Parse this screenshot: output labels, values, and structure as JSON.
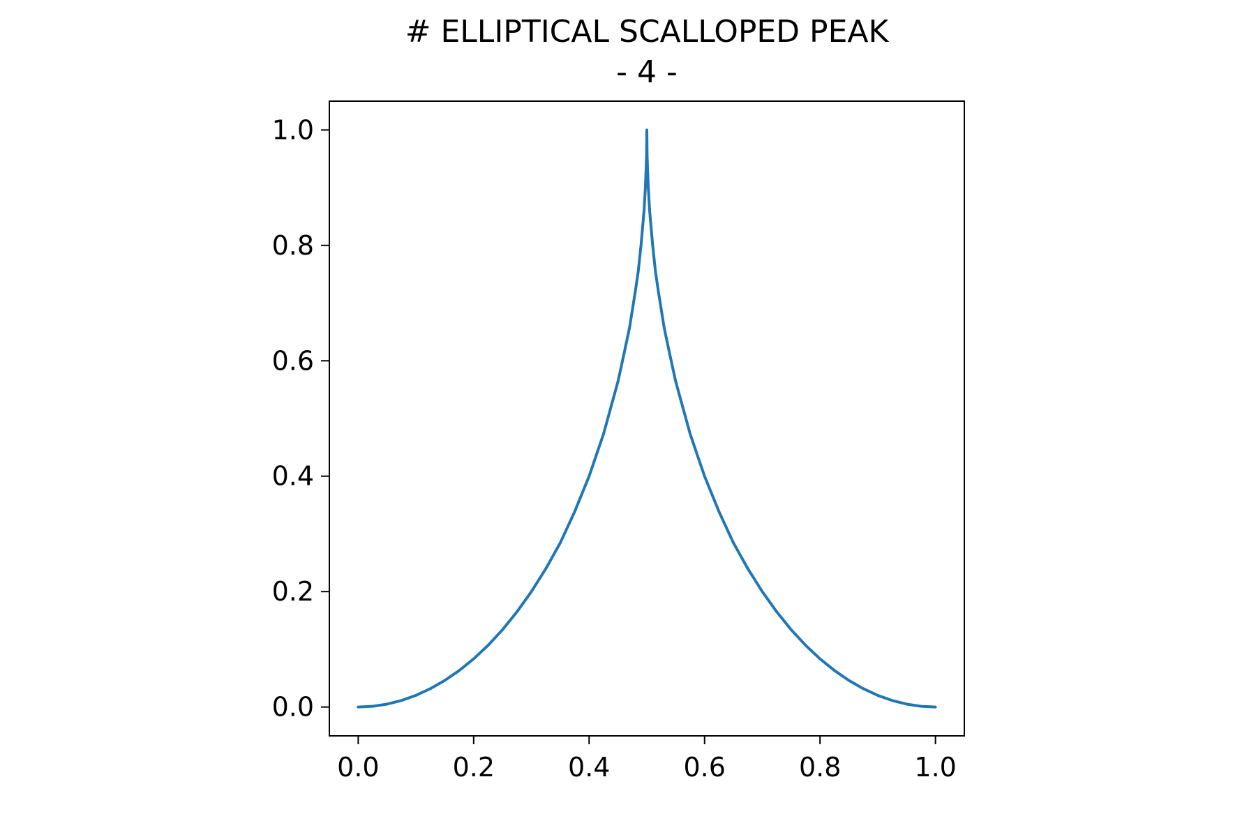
{
  "chart_data": {
    "type": "line",
    "title": "# ELLIPTICAL SCALLOPED PEAK",
    "subtitle": "- 4 -",
    "xlabel": "",
    "ylabel": "",
    "xlim": [
      -0.05,
      1.05
    ],
    "ylim": [
      -0.05,
      1.05
    ],
    "x_ticks": [
      "0.0",
      "0.2",
      "0.4",
      "0.6",
      "0.8",
      "1.0"
    ],
    "y_ticks": [
      "0.0",
      "0.2",
      "0.4",
      "0.6",
      "0.8",
      "1.0"
    ],
    "grid": false,
    "legend": "none",
    "series": [
      {
        "color": "#1f77b4",
        "x": [
          0.0,
          0.025,
          0.05,
          0.075,
          0.1,
          0.125,
          0.15,
          0.175,
          0.2,
          0.225,
          0.25,
          0.275,
          0.3,
          0.325,
          0.35,
          0.375,
          0.4,
          0.425,
          0.45,
          0.46,
          0.47,
          0.48,
          0.485,
          0.49,
          0.495,
          0.4975,
          0.4995,
          0.5,
          0.5005,
          0.5025,
          0.505,
          0.51,
          0.515,
          0.52,
          0.53,
          0.54,
          0.55,
          0.575,
          0.6,
          0.625,
          0.65,
          0.675,
          0.7,
          0.725,
          0.75,
          0.775,
          0.8,
          0.825,
          0.85,
          0.875,
          0.9,
          0.925,
          0.95,
          0.975,
          1.0
        ],
        "y": [
          0.0,
          0.00125,
          0.00501,
          0.01131,
          0.0202,
          0.03175,
          0.04606,
          0.06328,
          0.08348,
          0.10692,
          0.13397,
          0.16495,
          0.2,
          0.23969,
          0.28446,
          0.33856,
          0.4,
          0.47323,
          0.56411,
          0.61007,
          0.65732,
          0.72,
          0.75403,
          0.80101,
          0.85834,
          0.9,
          0.95528,
          1.0,
          0.95528,
          0.9,
          0.85834,
          0.80101,
          0.75403,
          0.72,
          0.65732,
          0.61007,
          0.56411,
          0.47323,
          0.4,
          0.33856,
          0.28446,
          0.23969,
          0.2,
          0.16495,
          0.13397,
          0.10692,
          0.08348,
          0.06328,
          0.04606,
          0.03175,
          0.0202,
          0.01131,
          0.00501,
          0.00125,
          0.0
        ]
      }
    ]
  }
}
